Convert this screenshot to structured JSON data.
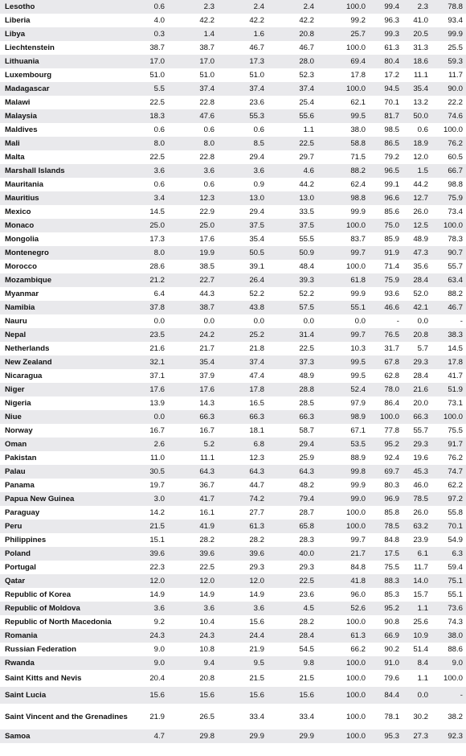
{
  "rows": [
    {
      "country": "Lesotho",
      "v": [
        "0.6",
        "2.3",
        "2.4",
        "2.4",
        "100.0",
        "99.4",
        "2.3",
        "78.8"
      ]
    },
    {
      "country": "Liberia",
      "v": [
        "4.0",
        "42.2",
        "42.2",
        "42.2",
        "99.2",
        "96.3",
        "41.0",
        "93.4"
      ]
    },
    {
      "country": "Libya",
      "v": [
        "0.3",
        "1.4",
        "1.6",
        "20.8",
        "25.7",
        "99.3",
        "20.5",
        "99.9"
      ]
    },
    {
      "country": "Liechtenstein",
      "v": [
        "38.7",
        "38.7",
        "46.7",
        "46.7",
        "100.0",
        "61.3",
        "31.3",
        "25.5"
      ]
    },
    {
      "country": "Lithuania",
      "v": [
        "17.0",
        "17.0",
        "17.3",
        "28.0",
        "69.4",
        "80.4",
        "18.6",
        "59.3"
      ]
    },
    {
      "country": "Luxembourg",
      "v": [
        "51.0",
        "51.0",
        "51.0",
        "52.3",
        "17.8",
        "17.2",
        "11.1",
        "11.7"
      ]
    },
    {
      "country": "Madagascar",
      "v": [
        "5.5",
        "37.4",
        "37.4",
        "37.4",
        "100.0",
        "94.5",
        "35.4",
        "90.0"
      ]
    },
    {
      "country": "Malawi",
      "v": [
        "22.5",
        "22.8",
        "23.6",
        "25.4",
        "62.1",
        "70.1",
        "13.2",
        "22.2"
      ]
    },
    {
      "country": "Malaysia",
      "v": [
        "18.3",
        "47.6",
        "55.3",
        "55.6",
        "99.5",
        "81.7",
        "50.0",
        "74.6"
      ]
    },
    {
      "country": "Maldives",
      "v": [
        "0.6",
        "0.6",
        "0.6",
        "1.1",
        "38.0",
        "98.5",
        "0.6",
        "100.0"
      ]
    },
    {
      "country": "Mali",
      "v": [
        "8.0",
        "8.0",
        "8.5",
        "22.5",
        "58.8",
        "86.5",
        "18.9",
        "76.2"
      ]
    },
    {
      "country": "Malta",
      "v": [
        "22.5",
        "22.8",
        "29.4",
        "29.7",
        "71.5",
        "79.2",
        "12.0",
        "60.5"
      ]
    },
    {
      "country": "Marshall Islands",
      "v": [
        "3.6",
        "3.6",
        "3.6",
        "4.6",
        "88.2",
        "96.5",
        "1.5",
        "66.7"
      ]
    },
    {
      "country": "Mauritania",
      "v": [
        "0.6",
        "0.6",
        "0.9",
        "44.2",
        "62.4",
        "99.1",
        "44.2",
        "98.8"
      ]
    },
    {
      "country": "Mauritius",
      "v": [
        "3.4",
        "12.3",
        "13.0",
        "13.0",
        "98.8",
        "96.6",
        "12.7",
        "75.9"
      ]
    },
    {
      "country": "Mexico",
      "v": [
        "14.5",
        "22.9",
        "29.4",
        "33.5",
        "99.9",
        "85.6",
        "26.0",
        "73.4"
      ]
    },
    {
      "country": "Monaco",
      "v": [
        "25.0",
        "25.0",
        "37.5",
        "37.5",
        "100.0",
        "75.0",
        "12.5",
        "100.0"
      ]
    },
    {
      "country": "Mongolia",
      "v": [
        "17.3",
        "17.6",
        "35.4",
        "55.5",
        "83.7",
        "85.9",
        "48.9",
        "78.3"
      ]
    },
    {
      "country": "Montenegro",
      "v": [
        "8.0",
        "19.9",
        "50.5",
        "50.9",
        "99.7",
        "91.9",
        "47.3",
        "90.7"
      ]
    },
    {
      "country": "Morocco",
      "v": [
        "28.6",
        "38.5",
        "39.1",
        "48.4",
        "100.0",
        "71.4",
        "35.6",
        "55.7"
      ]
    },
    {
      "country": "Mozambique",
      "v": [
        "21.2",
        "22.7",
        "26.4",
        "39.3",
        "61.8",
        "75.9",
        "28.4",
        "63.4"
      ]
    },
    {
      "country": "Myanmar",
      "v": [
        "6.4",
        "44.3",
        "52.2",
        "52.2",
        "99.9",
        "93.6",
        "52.0",
        "88.2"
      ]
    },
    {
      "country": "Namibia",
      "v": [
        "37.8",
        "38.7",
        "43.8",
        "57.5",
        "55.1",
        "46.6",
        "42.1",
        "46.7"
      ]
    },
    {
      "country": "Nauru",
      "v": [
        "0.0",
        "0.0",
        "0.0",
        "0.0",
        "0.0",
        "-",
        "0.0",
        "-"
      ]
    },
    {
      "country": "Nepal",
      "v": [
        "23.5",
        "24.2",
        "25.2",
        "31.4",
        "99.7",
        "76.5",
        "20.8",
        "38.3"
      ]
    },
    {
      "country": "Netherlands",
      "v": [
        "21.6",
        "21.7",
        "21.8",
        "22.5",
        "10.3",
        "31.7",
        "5.7",
        "14.5"
      ]
    },
    {
      "country": "New Zealand",
      "v": [
        "32.1",
        "35.4",
        "37.4",
        "37.3",
        "99.5",
        "67.8",
        "29.3",
        "17.8"
      ]
    },
    {
      "country": "Nicaragua",
      "v": [
        "37.1",
        "37.9",
        "47.4",
        "48.9",
        "99.5",
        "62.8",
        "28.4",
        "41.7"
      ]
    },
    {
      "country": "Niger",
      "v": [
        "17.6",
        "17.6",
        "17.8",
        "28.8",
        "52.4",
        "78.0",
        "21.6",
        "51.9"
      ]
    },
    {
      "country": "Nigeria",
      "v": [
        "13.9",
        "14.3",
        "16.5",
        "28.5",
        "97.9",
        "86.4",
        "20.0",
        "73.1"
      ]
    },
    {
      "country": "Niue",
      "v": [
        "0.0",
        "66.3",
        "66.3",
        "66.3",
        "98.9",
        "100.0",
        "66.3",
        "100.0"
      ]
    },
    {
      "country": "Norway",
      "v": [
        "16.7",
        "16.7",
        "18.1",
        "58.7",
        "67.1",
        "77.8",
        "55.7",
        "75.5"
      ]
    },
    {
      "country": "Oman",
      "v": [
        "2.6",
        "5.2",
        "6.8",
        "29.4",
        "53.5",
        "95.2",
        "29.3",
        "91.7"
      ]
    },
    {
      "country": "Pakistan",
      "v": [
        "11.0",
        "11.1",
        "12.3",
        "25.9",
        "88.9",
        "92.4",
        "19.6",
        "76.2"
      ]
    },
    {
      "country": "Palau",
      "v": [
        "30.5",
        "64.3",
        "64.3",
        "64.3",
        "99.8",
        "69.7",
        "45.3",
        "74.7"
      ]
    },
    {
      "country": "Panama",
      "v": [
        "19.7",
        "36.7",
        "44.7",
        "48.2",
        "99.9",
        "80.3",
        "46.0",
        "62.2"
      ]
    },
    {
      "country": "Papua New Guinea",
      "v": [
        "3.0",
        "41.7",
        "74.2",
        "79.4",
        "99.0",
        "96.9",
        "78.5",
        "97.2"
      ]
    },
    {
      "country": "Paraguay",
      "v": [
        "14.2",
        "16.1",
        "27.7",
        "28.7",
        "100.0",
        "85.8",
        "26.0",
        "55.8"
      ]
    },
    {
      "country": "Peru",
      "v": [
        "21.5",
        "41.9",
        "61.3",
        "65.8",
        "100.0",
        "78.5",
        "63.2",
        "70.1"
      ]
    },
    {
      "country": "Philippines",
      "v": [
        "15.1",
        "28.2",
        "28.2",
        "28.3",
        "99.7",
        "84.8",
        "23.9",
        "54.9"
      ]
    },
    {
      "country": "Poland",
      "v": [
        "39.6",
        "39.6",
        "39.6",
        "40.0",
        "21.7",
        "17.5",
        "6.1",
        "6.3"
      ]
    },
    {
      "country": "Portugal",
      "v": [
        "22.3",
        "22.5",
        "29.3",
        "29.3",
        "84.8",
        "75.5",
        "11.7",
        "59.4"
      ]
    },
    {
      "country": "Qatar",
      "v": [
        "12.0",
        "12.0",
        "12.0",
        "22.5",
        "41.8",
        "88.3",
        "14.0",
        "75.1"
      ]
    },
    {
      "country": "Republic of Korea",
      "v": [
        "14.9",
        "14.9",
        "14.9",
        "23.6",
        "96.0",
        "85.3",
        "15.7",
        "55.1"
      ]
    },
    {
      "country": "Republic of Moldova",
      "v": [
        "3.6",
        "3.6",
        "3.6",
        "4.5",
        "52.6",
        "95.2",
        "1.1",
        "73.6"
      ]
    },
    {
      "country": "Republic of North Macedonia",
      "v": [
        "9.2",
        "10.4",
        "15.6",
        "28.2",
        "100.0",
        "90.8",
        "25.6",
        "74.3"
      ]
    },
    {
      "country": "Romania",
      "v": [
        "24.3",
        "24.3",
        "24.4",
        "28.4",
        "61.3",
        "66.9",
        "10.9",
        "38.0"
      ]
    },
    {
      "country": "Russian Federation",
      "v": [
        "9.0",
        "10.8",
        "21.9",
        "54.5",
        "66.2",
        "90.2",
        "51.4",
        "88.6"
      ]
    },
    {
      "country": "Rwanda",
      "v": [
        "9.0",
        "9.4",
        "9.5",
        "9.8",
        "100.0",
        "91.0",
        "8.4",
        "9.0"
      ]
    },
    {
      "country": "Saint Kitts and Nevis",
      "v": [
        "20.4",
        "20.8",
        "21.5",
        "21.5",
        "100.0",
        "79.6",
        "1.1",
        "100.0"
      ]
    },
    {
      "country": "Saint Lucia",
      "v": [
        "15.6",
        "15.6",
        "15.6",
        "15.6",
        "100.0",
        "84.4",
        "0.0",
        "-"
      ]
    },
    {
      "country": "Saint Vincent and the Grenadines",
      "v": [
        "21.9",
        "26.5",
        "33.4",
        "33.4",
        "100.0",
        "78.1",
        "30.2",
        "38.2"
      ]
    },
    {
      "country": "Samoa",
      "v": [
        "4.7",
        "29.8",
        "29.9",
        "29.9",
        "100.0",
        "95.3",
        "27.3",
        "92.3"
      ]
    }
  ]
}
